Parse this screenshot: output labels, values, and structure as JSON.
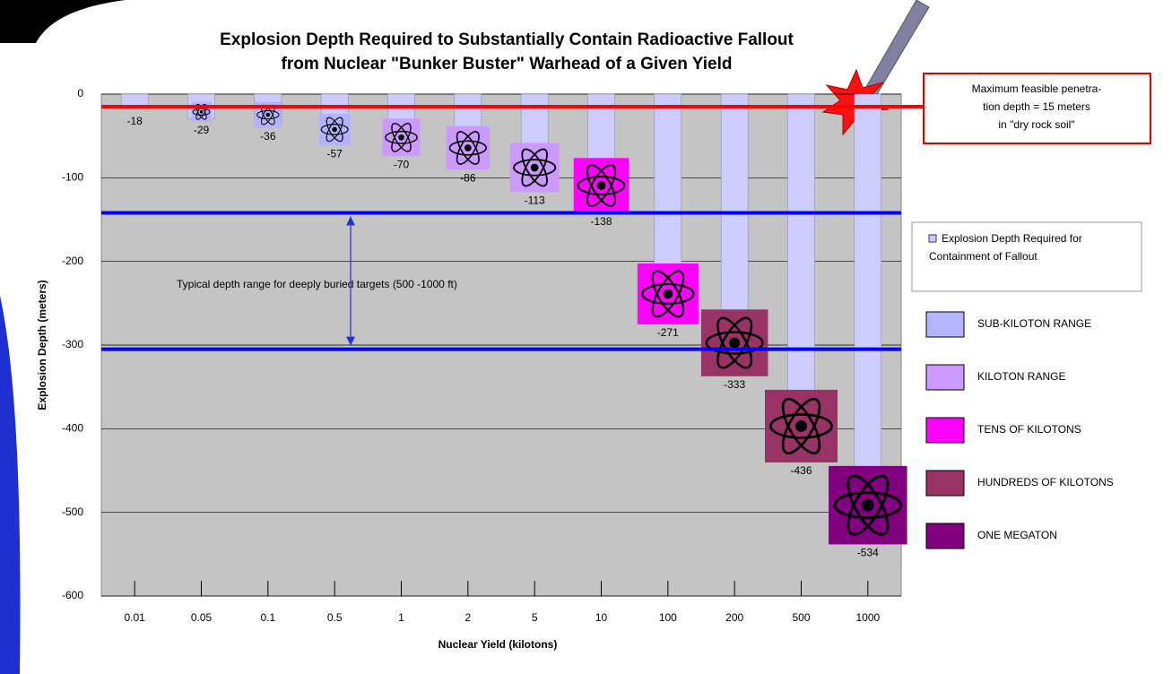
{
  "chart_data": {
    "type": "bar",
    "title": [
      "Explosion Depth Required to Substantially Contain Radioactive Fallout",
      "from Nuclear \"Bunker Buster\"  Warhead of a Given Yield"
    ],
    "x_label": "Nuclear Yield (kilotons)",
    "y_label": "Explosion Depth (meters)",
    "categories": [
      "0.01",
      "0.05",
      "0.1",
      "0.5",
      "1",
      "2",
      "5",
      "10",
      "100",
      "200",
      "500",
      "1000"
    ],
    "series": [
      {
        "name": "Explosion Depth Required for Containment of Fallout",
        "color": "#ccccff",
        "values": [
          -18,
          -29,
          -36,
          -57,
          -70,
          -86,
          -113,
          -138,
          -271,
          -333,
          -436,
          -534
        ]
      }
    ],
    "icon_colors": [
      "#b3b3ff",
      "#b3b3ff",
      "#b3b3ff",
      "#b3b3ff",
      "#cc99ff",
      "#cc99ff",
      "#cc99ff",
      "#ff00ff",
      "#ff00ff",
      "#993366",
      "#993366",
      "#800080"
    ],
    "ranges": [
      {
        "name": "SUB-KILOTON RANGE",
        "color": "#b3b3ff"
      },
      {
        "name": "KILOTON RANGE",
        "color": "#cc99ff"
      },
      {
        "name": "TENS OF KILOTONS",
        "color": "#ff00ff"
      },
      {
        "name": "HUNDREDS OF KILOTONS",
        "color": "#993366"
      },
      {
        "name": "ONE MEGATON",
        "color": "#800080"
      }
    ],
    "reference_lines": [
      {
        "value": -15,
        "color": "#ff0000"
      },
      {
        "value": -142,
        "color": "#0000ff"
      },
      {
        "value": -305,
        "color": "#0000ff"
      }
    ],
    "annotations": {
      "depth_range": "Typical depth range for deeply buried targets (500 -1000 ft)",
      "penetration": [
        "Maximum feasible penetra-",
        "tion depth = 15 meters",
        "in \"dry rock soil\""
      ]
    },
    "ylim": [
      -600,
      0
    ],
    "yticks": [
      0,
      -100,
      -200,
      -300,
      -400,
      -500,
      -600
    ],
    "grid": true
  }
}
